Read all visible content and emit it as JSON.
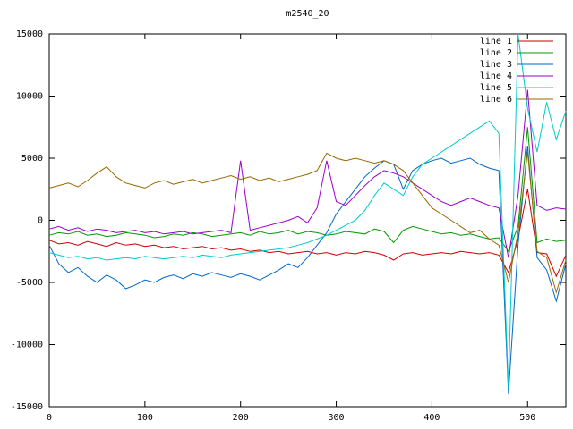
{
  "title": "m2540_20",
  "chart_data": {
    "type": "line",
    "title": "m2540_20",
    "xlabel": "",
    "ylabel": "",
    "xlim": [
      0,
      540
    ],
    "ylim": [
      -15000,
      15000
    ],
    "x_ticks": [
      0,
      100,
      200,
      300,
      400,
      500
    ],
    "y_ticks": [
      -15000,
      -10000,
      -5000,
      0,
      5000,
      10000,
      15000
    ],
    "grid": false,
    "legend_position": "top-right",
    "x_step": 10,
    "series": [
      {
        "name": "line 1",
        "color": "#cc0000",
        "values": [
          -1600,
          -1900,
          -1800,
          -2000,
          -1700,
          -1900,
          -2100,
          -1800,
          -2000,
          -1900,
          -2100,
          -2000,
          -2200,
          -2100,
          -2300,
          -2200,
          -2100,
          -2300,
          -2200,
          -2400,
          -2300,
          -2500,
          -2400,
          -2600,
          -2500,
          -2700,
          -2600,
          -2500,
          -2700,
          -2600,
          -2800,
          -2600,
          -2700,
          -2500,
          -2600,
          -2800,
          -3200,
          -2700,
          -2600,
          -2800,
          -2700,
          -2600,
          -2700,
          -2500,
          -2600,
          -2700,
          -2600,
          -2800,
          -4200,
          -1500,
          2500,
          -2600,
          -2700,
          -4500,
          -2800
        ]
      },
      {
        "name": "line 2",
        "color": "#009900",
        "values": [
          -1200,
          -1000,
          -1100,
          -900,
          -1200,
          -1100,
          -1300,
          -1200,
          -1000,
          -1100,
          -1200,
          -1400,
          -1300,
          -1100,
          -1200,
          -1000,
          -1100,
          -1300,
          -1200,
          -1100,
          -1000,
          -1200,
          -900,
          -1100,
          -1000,
          -800,
          -1100,
          -900,
          -1000,
          -1200,
          -1100,
          -900,
          -1000,
          -1100,
          -700,
          -900,
          -1800,
          -800,
          -500,
          -700,
          -900,
          -1100,
          -1000,
          -1200,
          -1100,
          -1300,
          -1500,
          -1400,
          -2500,
          -500,
          7500,
          -1800,
          -1500,
          -1700,
          -1600
        ]
      },
      {
        "name": "line 3",
        "color": "#0066cc",
        "values": [
          -2000,
          -3500,
          -4200,
          -3800,
          -4500,
          -5000,
          -4400,
          -4800,
          -5500,
          -5200,
          -4800,
          -5000,
          -4600,
          -4400,
          -4700,
          -4300,
          -4500,
          -4200,
          -4400,
          -4600,
          -4300,
          -4500,
          -4800,
          -4400,
          -4000,
          -3500,
          -3800,
          -3000,
          -2000,
          -1000,
          500,
          1500,
          2500,
          3500,
          4200,
          4800,
          4500,
          2500,
          4000,
          4500,
          4800,
          5000,
          4600,
          4800,
          5000,
          4500,
          4200,
          4000,
          -14000,
          -2000,
          6000,
          -3000,
          -4000,
          -6500,
          -3500
        ]
      },
      {
        "name": "line 4",
        "color": "#9900cc",
        "values": [
          -700,
          -500,
          -800,
          -600,
          -900,
          -700,
          -800,
          -1000,
          -900,
          -800,
          -1000,
          -900,
          -1100,
          -1000,
          -900,
          -1100,
          -1000,
          -900,
          -800,
          -1000,
          4800,
          -800,
          -600,
          -400,
          -200,
          0,
          300,
          -200,
          1000,
          4800,
          1500,
          1200,
          2000,
          2800,
          3500,
          4000,
          3800,
          3500,
          3000,
          2500,
          2000,
          1500,
          1200,
          1500,
          1800,
          1500,
          1200,
          1000,
          -3000,
          2000,
          10500,
          1200,
          800,
          1000,
          900
        ]
      },
      {
        "name": "line 5",
        "color": "#00cccc",
        "values": [
          -2600,
          -2800,
          -3000,
          -2900,
          -3100,
          -3000,
          -3200,
          -3100,
          -3000,
          -3100,
          -2900,
          -3000,
          -3100,
          -3000,
          -2900,
          -3000,
          -2800,
          -2900,
          -3000,
          -2800,
          -2700,
          -2600,
          -2500,
          -2400,
          -2300,
          -2200,
          -2000,
          -1800,
          -1500,
          -1200,
          -800,
          -400,
          0,
          800,
          2000,
          3000,
          2500,
          2000,
          3500,
          4500,
          5000,
          5500,
          6000,
          6500,
          7000,
          7500,
          8000,
          7000,
          -13500,
          15000,
          9000,
          5500,
          9500,
          6500,
          8800
        ]
      },
      {
        "name": "line 6",
        "color": "#996600",
        "values": [
          2600,
          2800,
          3000,
          2700,
          3200,
          3800,
          4300,
          3500,
          3000,
          2800,
          2600,
          3000,
          3200,
          2900,
          3100,
          3300,
          3000,
          3200,
          3400,
          3600,
          3300,
          3500,
          3200,
          3400,
          3100,
          3300,
          3500,
          3700,
          4000,
          5400,
          5000,
          4800,
          5000,
          4800,
          4600,
          4800,
          4500,
          4000,
          3000,
          2000,
          1000,
          500,
          0,
          -500,
          -1000,
          -800,
          -1500,
          -2000,
          -5000,
          -1000,
          5500,
          -2500,
          -3000,
          -5800,
          -3200
        ]
      }
    ]
  }
}
